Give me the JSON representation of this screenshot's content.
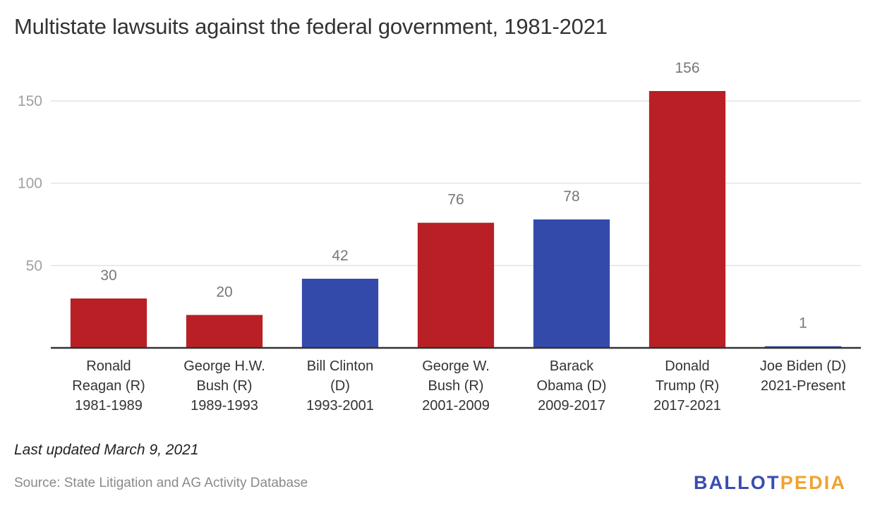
{
  "chart_data": {
    "type": "bar",
    "title": "Multistate lawsuits against the federal government, 1981-2021",
    "xlabel": "",
    "ylabel": "",
    "ylim": [
      0,
      150
    ],
    "yticks": [
      50,
      100,
      150
    ],
    "grid": true,
    "categories": [
      [
        "Ronald",
        "Reagan (R)",
        "1981-1989"
      ],
      [
        "George H.W.",
        "Bush (R)",
        "1989-1993"
      ],
      [
        "Bill Clinton",
        "(D)",
        "1993-2001"
      ],
      [
        "George W.",
        "Bush (R)",
        "2001-2009"
      ],
      [
        "Barack",
        "Obama (D)",
        "2009-2017"
      ],
      [
        "Donald",
        "Trump (R)",
        "2017-2021"
      ],
      [
        "Joe Biden (D)",
        "2021-Present"
      ]
    ],
    "values": [
      30,
      20,
      42,
      76,
      78,
      156,
      1
    ],
    "party": [
      "R",
      "R",
      "D",
      "R",
      "D",
      "R",
      "D"
    ],
    "colors": {
      "R": "#b82025",
      "D": "#344aab"
    },
    "data_labels": [
      "30",
      "20",
      "42",
      "76",
      "78",
      "156",
      "1"
    ]
  },
  "footer": {
    "updated": "Last updated March 9, 2021",
    "source": "Source: State Litigation and AG Activity Database"
  },
  "logo": {
    "part1": "BALLOT",
    "part2": "PEDIA"
  }
}
